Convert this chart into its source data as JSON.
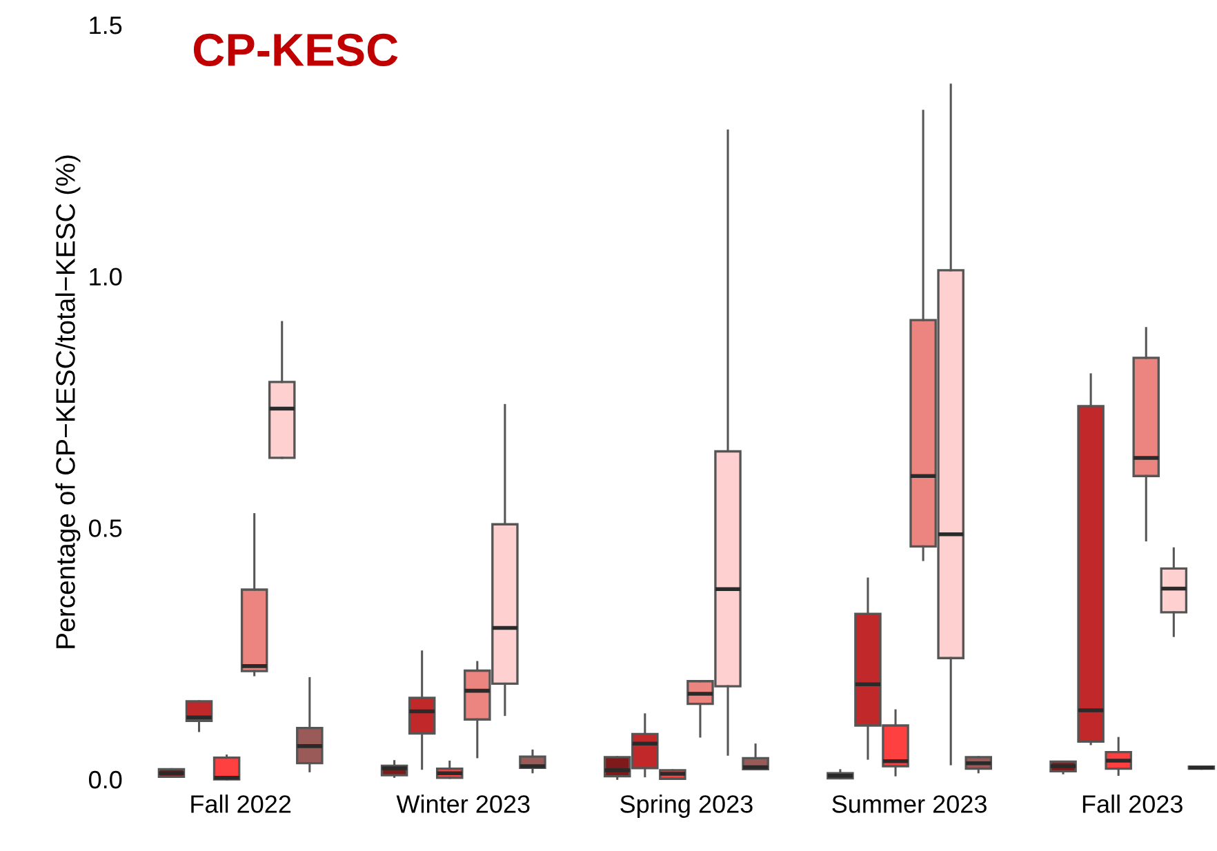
{
  "chart_data": {
    "type": "box",
    "title": "CP-KESC",
    "ylabel": "Percentage of CP−KESC/total−KESC (%)",
    "categories": [
      "Fall 2022",
      "Winter 2023",
      "Spring 2023",
      "Summer 2023",
      "Fall 2023"
    ],
    "ylim": [
      0,
      1.5
    ],
    "yticks": [
      {
        "value": 0,
        "label": "0.0"
      },
      {
        "value": 0.5,
        "label": "0.5"
      },
      {
        "value": 1,
        "label": "1.0"
      },
      {
        "value": 1.5,
        "label": "1.5"
      }
    ],
    "grid": false,
    "series": [
      {
        "color": "#7f1a1a",
        "boxes": [
          {
            "low": 0.005,
            "q1": 0.005,
            "median": 0.012,
            "q3": 0.02,
            "high": 0.02
          },
          {
            "low": 0.005,
            "q1": 0.008,
            "median": 0.022,
            "q3": 0.027,
            "high": 0.036
          },
          {
            "low": 0.001,
            "q1": 0.006,
            "median": 0.018,
            "q3": 0.044,
            "high": 0.044
          },
          {
            "low": 0.002,
            "q1": 0.002,
            "median": 0.007,
            "q3": 0.012,
            "high": 0.018
          },
          {
            "low": 0.012,
            "q1": 0.016,
            "median": 0.026,
            "q3": 0.035,
            "high": 0.035
          }
        ]
      },
      {
        "color": "#c0282a",
        "boxes": [
          {
            "low": 0.096,
            "q1": 0.116,
            "median": 0.123,
            "q3": 0.155,
            "high": 0.155
          },
          {
            "low": 0.021,
            "q1": 0.091,
            "median": 0.135,
            "q3": 0.162,
            "high": 0.254
          },
          {
            "low": 0.006,
            "q1": 0.022,
            "median": 0.071,
            "q3": 0.09,
            "high": 0.129
          },
          {
            "low": 0.041,
            "q1": 0.107,
            "median": 0.189,
            "q3": 0.329,
            "high": 0.399
          },
          {
            "low": 0.07,
            "q1": 0.075,
            "median": 0.137,
            "q3": 0.742,
            "high": 0.805
          }
        ]
      },
      {
        "color": "#ff4040",
        "boxes": [
          {
            "low": 0.0,
            "q1": 0.0,
            "median": 0.003,
            "q3": 0.043,
            "high": 0.047
          },
          {
            "low": 0.003,
            "q1": 0.003,
            "median": 0.012,
            "q3": 0.021,
            "high": 0.035
          },
          {
            "low": 0.001,
            "q1": 0.001,
            "median": 0.011,
            "q3": 0.018,
            "high": 0.018
          },
          {
            "low": 0.008,
            "q1": 0.026,
            "median": 0.036,
            "q3": 0.107,
            "high": 0.137
          },
          {
            "low": 0.009,
            "q1": 0.021,
            "median": 0.037,
            "q3": 0.054,
            "high": 0.082
          }
        ]
      },
      {
        "color": "#ec8580",
        "boxes": [
          {
            "low": 0.207,
            "q1": 0.215,
            "median": 0.225,
            "q3": 0.377,
            "high": 0.527
          },
          {
            "low": 0.044,
            "q1": 0.119,
            "median": 0.176,
            "q3": 0.216,
            "high": 0.233
          },
          {
            "low": 0.085,
            "q1": 0.15,
            "median": 0.17,
            "q3": 0.195,
            "high": 0.195
          },
          {
            "low": 0.436,
            "q1": 0.463,
            "median": 0.603,
            "q3": 0.913,
            "high": 1.329
          },
          {
            "low": 0.475,
            "q1": 0.603,
            "median": 0.639,
            "q3": 0.838,
            "high": 0.897
          }
        ]
      },
      {
        "color": "#ffd0d0",
        "boxes": [
          {
            "low": 0.639,
            "q1": 0.639,
            "median": 0.737,
            "q3": 0.79,
            "high": 0.909
          },
          {
            "low": 0.128,
            "q1": 0.19,
            "median": 0.301,
            "q3": 0.507,
            "high": 0.744
          },
          {
            "low": 0.049,
            "q1": 0.185,
            "median": 0.378,
            "q3": 0.652,
            "high": 1.29
          },
          {
            "low": 0.03,
            "q1": 0.241,
            "median": 0.487,
            "q3": 1.012,
            "high": 1.381
          },
          {
            "low": 0.285,
            "q1": 0.332,
            "median": 0.379,
            "q3": 0.419,
            "high": 0.459
          }
        ]
      },
      {
        "color": "#9a5a58",
        "boxes": [
          {
            "low": 0.016,
            "q1": 0.032,
            "median": 0.066,
            "q3": 0.102,
            "high": 0.201
          },
          {
            "low": 0.014,
            "q1": 0.023,
            "median": 0.026,
            "q3": 0.045,
            "high": 0.057
          },
          {
            "low": 0.02,
            "q1": 0.02,
            "median": 0.024,
            "q3": 0.042,
            "high": 0.069
          },
          {
            "low": 0.014,
            "q1": 0.021,
            "median": 0.032,
            "q3": 0.044,
            "high": 0.044
          },
          {
            "low": 0.021,
            "q1": 0.021,
            "median": 0.023,
            "q3": 0.025,
            "high": 0.025
          }
        ]
      }
    ]
  }
}
